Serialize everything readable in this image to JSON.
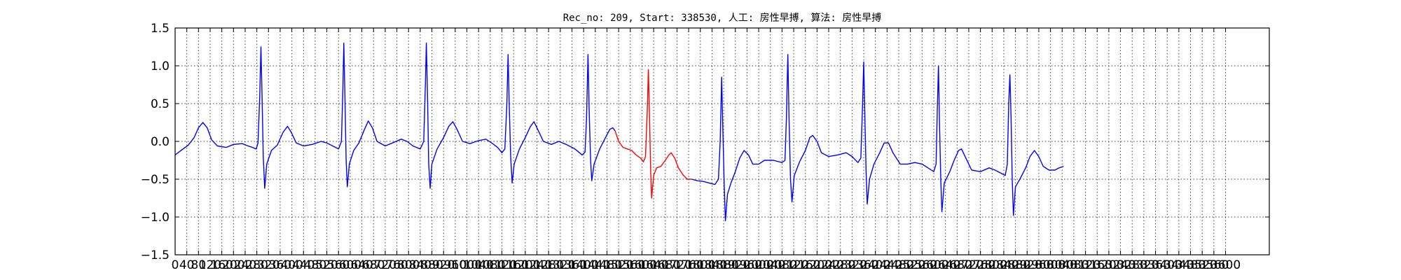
{
  "chart_data": {
    "type": "line",
    "title": "Rec_no: 209, Start: 338530, 人工: 房性早搏, 算法: 房性早搏",
    "xlabel": "",
    "ylabel": "",
    "xlim": [
      0,
      3750
    ],
    "ylim": [
      -1.5,
      1.5
    ],
    "grid": true,
    "y_ticks": [
      1.5,
      1.0,
      0.5,
      0.0,
      -0.5,
      -1.0,
      -1.5
    ],
    "y_tick_labels": [
      "1.5",
      "1.0",
      "0.5",
      "0.0",
      "−0.5",
      "−1.0",
      "−1.5"
    ],
    "x_ticks": [
      0,
      40,
      80,
      120,
      160,
      200,
      240,
      280,
      320,
      360,
      400,
      440,
      480,
      520,
      560,
      600,
      640,
      680,
      720,
      760,
      800,
      840,
      880,
      920,
      960,
      1000,
      1040,
      1080,
      1120,
      1160,
      1200,
      1240,
      1280,
      1320,
      1360,
      1400,
      1440,
      1480,
      1520,
      1560,
      1600,
      1640,
      1680,
      1720,
      1760,
      1800,
      1840,
      1880,
      1920,
      1960,
      2000,
      2040,
      2080,
      2120,
      2160,
      2200,
      2240,
      2280,
      2320,
      2360,
      2400,
      2440,
      2480,
      2520,
      2560,
      2600,
      2640,
      2680,
      2720,
      2760,
      2800,
      2840,
      2880,
      2920,
      2960,
      3000,
      3040,
      3080,
      3120,
      3160,
      3200,
      3240,
      3280,
      3320,
      3360,
      3400,
      3440,
      3480,
      3520,
      3560,
      3600
    ],
    "x_tick_labels": [
      "0",
      "40",
      "80",
      "120",
      "160",
      "200",
      "240",
      "280",
      "320",
      "360",
      "400",
      "440",
      "480",
      "520",
      "560",
      "600",
      "640",
      "680",
      "720",
      "760",
      "800",
      "840",
      "880",
      "920",
      "960",
      "1000",
      "1040",
      "1080",
      "1120",
      "1160",
      "1200",
      "1240",
      "1280",
      "1320",
      "1360",
      "1400",
      "1440",
      "1480",
      "1520",
      "1560",
      "1600",
      "1640",
      "1680",
      "1720",
      "1760",
      "1800",
      "1840",
      "1880",
      "1920",
      "1960",
      "2000",
      "2040",
      "2080",
      "2120",
      "2160",
      "2200",
      "2240",
      "2280",
      "2320",
      "2360",
      "2400",
      "2440",
      "2480",
      "2520",
      "2560",
      "2600",
      "2640",
      "2680",
      "2720",
      "2760",
      "2800",
      "2840",
      "2880",
      "2920",
      "2960",
      "3000",
      "3040",
      "3080",
      "3120",
      "3160",
      "3200",
      "3240",
      "3280",
      "3320",
      "3360",
      "3400",
      "3440",
      "3480",
      "3520",
      "3560",
      "3600"
    ],
    "series": [
      {
        "color": "#0000ff",
        "segment": "pre",
        "points": [
          [
            0,
            -0.18
          ],
          [
            20,
            -0.12
          ],
          [
            45,
            -0.05
          ],
          [
            65,
            0.05
          ],
          [
            80,
            0.18
          ],
          [
            95,
            0.25
          ],
          [
            110,
            0.18
          ],
          [
            125,
            0.02
          ],
          [
            145,
            -0.06
          ],
          [
            175,
            -0.08
          ],
          [
            200,
            -0.04
          ],
          [
            230,
            -0.03
          ],
          [
            250,
            -0.06
          ],
          [
            265,
            -0.08
          ],
          [
            278,
            -0.1
          ],
          [
            284,
            -0.02
          ],
          [
            290,
            0.6
          ],
          [
            294,
            1.25
          ],
          [
            298,
            0.6
          ],
          [
            302,
            -0.2
          ],
          [
            307,
            -0.62
          ],
          [
            314,
            -0.3
          ],
          [
            330,
            -0.12
          ],
          [
            350,
            -0.05
          ],
          [
            370,
            0.12
          ],
          [
            385,
            0.2
          ],
          [
            398,
            0.12
          ],
          [
            415,
            -0.02
          ],
          [
            440,
            -0.06
          ],
          [
            470,
            -0.04
          ],
          [
            500,
            0.0
          ],
          [
            520,
            -0.02
          ],
          [
            540,
            -0.06
          ],
          [
            560,
            -0.1
          ],
          [
            570,
            0.0
          ],
          [
            575,
            0.7
          ],
          [
            578,
            1.3
          ],
          [
            582,
            0.6
          ],
          [
            586,
            -0.25
          ],
          [
            590,
            -0.6
          ],
          [
            597,
            -0.3
          ],
          [
            612,
            -0.12
          ],
          [
            630,
            -0.02
          ],
          [
            648,
            0.15
          ],
          [
            662,
            0.27
          ],
          [
            676,
            0.18
          ],
          [
            692,
            0.0
          ],
          [
            720,
            -0.06
          ],
          [
            745,
            -0.02
          ],
          [
            775,
            0.03
          ],
          [
            795,
            0.0
          ],
          [
            815,
            -0.06
          ],
          [
            840,
            -0.1
          ],
          [
            852,
            0.0
          ],
          [
            858,
            0.8
          ],
          [
            861,
            1.3
          ],
          [
            865,
            0.6
          ],
          [
            869,
            -0.3
          ],
          [
            874,
            -0.62
          ],
          [
            880,
            -0.3
          ],
          [
            898,
            -0.1
          ],
          [
            920,
            0.05
          ],
          [
            938,
            0.2
          ],
          [
            952,
            0.26
          ],
          [
            966,
            0.16
          ],
          [
            985,
            0.0
          ],
          [
            1010,
            -0.03
          ],
          [
            1040,
            0.01
          ],
          [
            1065,
            0.03
          ],
          [
            1085,
            -0.02
          ],
          [
            1105,
            -0.08
          ],
          [
            1120,
            -0.15
          ],
          [
            1130,
            -0.1
          ],
          [
            1137,
            0.5
          ],
          [
            1141,
            1.15
          ],
          [
            1145,
            0.5
          ],
          [
            1150,
            -0.2
          ],
          [
            1155,
            -0.55
          ],
          [
            1162,
            -0.3
          ],
          [
            1180,
            -0.1
          ],
          [
            1200,
            0.05
          ],
          [
            1218,
            0.2
          ],
          [
            1230,
            0.26
          ],
          [
            1245,
            0.14
          ],
          [
            1262,
            0.0
          ],
          [
            1290,
            -0.04
          ],
          [
            1315,
            0.0
          ],
          [
            1340,
            -0.04
          ],
          [
            1370,
            -0.1
          ],
          [
            1395,
            -0.18
          ],
          [
            1405,
            -0.14
          ],
          [
            1410,
            0.3
          ],
          [
            1415,
            1.15
          ],
          [
            1419,
            0.4
          ],
          [
            1424,
            -0.25
          ],
          [
            1428,
            -0.52
          ],
          [
            1436,
            -0.3
          ],
          [
            1455,
            -0.1
          ],
          [
            1475,
            0.05
          ],
          [
            1490,
            0.16
          ],
          [
            1500,
            0.18
          ],
          [
            1508,
            0.14
          ]
        ]
      },
      {
        "color": "#ff0000",
        "segment": "premature",
        "points": [
          [
            1508,
            0.14
          ],
          [
            1520,
            0.0
          ],
          [
            1535,
            -0.08
          ],
          [
            1550,
            -0.1
          ],
          [
            1565,
            -0.12
          ],
          [
            1580,
            -0.18
          ],
          [
            1595,
            -0.22
          ],
          [
            1605,
            -0.27
          ],
          [
            1612,
            -0.2
          ],
          [
            1618,
            0.4
          ],
          [
            1622,
            0.95
          ],
          [
            1626,
            0.3
          ],
          [
            1630,
            -0.4
          ],
          [
            1633,
            -0.75
          ],
          [
            1640,
            -0.45
          ],
          [
            1650,
            -0.35
          ],
          [
            1665,
            -0.33
          ],
          [
            1680,
            -0.25
          ],
          [
            1692,
            -0.18
          ],
          [
            1700,
            -0.15
          ],
          [
            1712,
            -0.22
          ],
          [
            1725,
            -0.35
          ],
          [
            1740,
            -0.44
          ],
          [
            1755,
            -0.5
          ],
          [
            1770,
            -0.5
          ]
        ]
      },
      {
        "color": "#0000ff",
        "segment": "post",
        "points": [
          [
            1770,
            -0.5
          ],
          [
            1790,
            -0.52
          ],
          [
            1810,
            -0.53
          ],
          [
            1830,
            -0.55
          ],
          [
            1850,
            -0.57
          ],
          [
            1862,
            -0.5
          ],
          [
            1868,
            0.0
          ],
          [
            1873,
            0.85
          ],
          [
            1877,
            0.2
          ],
          [
            1882,
            -0.6
          ],
          [
            1886,
            -1.05
          ],
          [
            1893,
            -0.7
          ],
          [
            1905,
            -0.55
          ],
          [
            1920,
            -0.4
          ],
          [
            1935,
            -0.22
          ],
          [
            1950,
            -0.12
          ],
          [
            1965,
            -0.18
          ],
          [
            1980,
            -0.3
          ],
          [
            2000,
            -0.3
          ],
          [
            2020,
            -0.25
          ],
          [
            2050,
            -0.25
          ],
          [
            2080,
            -0.28
          ],
          [
            2090,
            -0.25
          ],
          [
            2095,
            0.3
          ],
          [
            2100,
            1.15
          ],
          [
            2104,
            0.3
          ],
          [
            2109,
            -0.5
          ],
          [
            2114,
            -0.8
          ],
          [
            2122,
            -0.45
          ],
          [
            2140,
            -0.27
          ],
          [
            2160,
            -0.12
          ],
          [
            2175,
            0.05
          ],
          [
            2185,
            0.08
          ],
          [
            2200,
            0.0
          ],
          [
            2215,
            -0.15
          ],
          [
            2240,
            -0.2
          ],
          [
            2270,
            -0.18
          ],
          [
            2300,
            -0.15
          ],
          [
            2320,
            -0.2
          ],
          [
            2340,
            -0.28
          ],
          [
            2350,
            -0.22
          ],
          [
            2356,
            0.5
          ],
          [
            2360,
            1.05
          ],
          [
            2364,
            0.3
          ],
          [
            2368,
            -0.4
          ],
          [
            2372,
            -0.83
          ],
          [
            2380,
            -0.5
          ],
          [
            2395,
            -0.3
          ],
          [
            2415,
            -0.15
          ],
          [
            2430,
            -0.02
          ],
          [
            2445,
            -0.02
          ],
          [
            2460,
            -0.15
          ],
          [
            2485,
            -0.3
          ],
          [
            2510,
            -0.3
          ],
          [
            2535,
            -0.28
          ],
          [
            2560,
            -0.3
          ],
          [
            2580,
            -0.35
          ],
          [
            2600,
            -0.4
          ],
          [
            2608,
            -0.3
          ],
          [
            2612,
            0.4
          ],
          [
            2616,
            1.0
          ],
          [
            2620,
            0.2
          ],
          [
            2624,
            -0.5
          ],
          [
            2628,
            -0.93
          ],
          [
            2636,
            -0.55
          ],
          [
            2655,
            -0.4
          ],
          [
            2670,
            -0.25
          ],
          [
            2685,
            -0.12
          ],
          [
            2695,
            -0.1
          ],
          [
            2710,
            -0.22
          ],
          [
            2730,
            -0.38
          ],
          [
            2760,
            -0.4
          ],
          [
            2790,
            -0.35
          ],
          [
            2810,
            -0.38
          ],
          [
            2830,
            -0.42
          ],
          [
            2845,
            -0.45
          ],
          [
            2852,
            -0.3
          ],
          [
            2857,
            0.5
          ],
          [
            2861,
            0.88
          ],
          [
            2865,
            0.3
          ],
          [
            2869,
            -0.5
          ],
          [
            2873,
            -0.98
          ],
          [
            2880,
            -0.6
          ],
          [
            2895,
            -0.5
          ],
          [
            2915,
            -0.35
          ],
          [
            2930,
            -0.2
          ],
          [
            2945,
            -0.12
          ],
          [
            2960,
            -0.2
          ],
          [
            2975,
            -0.33
          ],
          [
            2995,
            -0.38
          ],
          [
            3015,
            -0.38
          ],
          [
            3030,
            -0.35
          ],
          [
            3045,
            -0.33
          ]
        ]
      }
    ]
  }
}
